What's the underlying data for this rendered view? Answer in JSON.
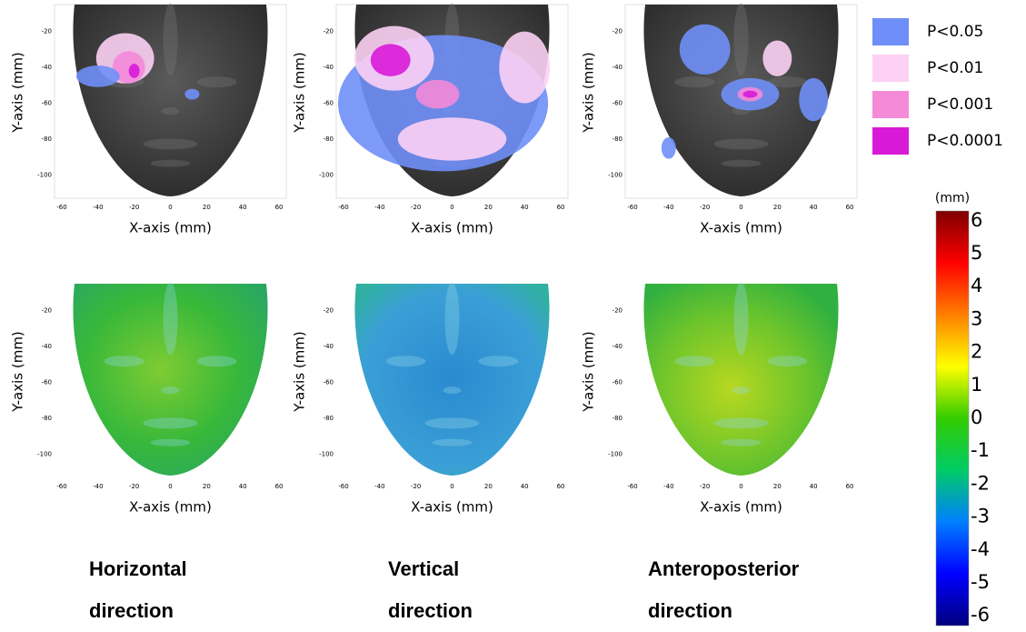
{
  "chart_data": [
    {
      "type": "heatmap",
      "xlabel": "X-axis (mm)",
      "ylabel": "Y-axis (mm)",
      "xlim": [
        -64,
        64
      ],
      "ylim": [
        -113,
        -5
      ],
      "xticks": [
        -60,
        -40,
        -20,
        0,
        20,
        40,
        60
      ],
      "yticks": [
        -20,
        -40,
        -60,
        -80,
        -100
      ]
    },
    {
      "type": "heatmap",
      "xlabel": "X-axis (mm)",
      "ylabel": "Y-axis (mm)",
      "xlim": [
        -64,
        64
      ],
      "ylim": [
        -113,
        -5
      ],
      "xticks": [
        -60,
        -40,
        -20,
        0,
        20,
        40,
        60
      ],
      "yticks": [
        -20,
        -40,
        -60,
        -80,
        -100
      ]
    },
    {
      "type": "heatmap",
      "xlabel": "X-axis (mm)",
      "ylabel": "Y-axis (mm)",
      "xlim": [
        -64,
        64
      ],
      "ylim": [
        -113,
        -5
      ],
      "xticks": [
        -60,
        -40,
        -20,
        0,
        20,
        40,
        60
      ],
      "yticks": [
        -20,
        -40,
        -60,
        -80,
        -100
      ]
    },
    {
      "type": "heatmap",
      "xlabel": "X-axis (mm)",
      "ylabel": "Y-axis (mm)",
      "xlim": [
        -64,
        64
      ],
      "ylim": [
        -113,
        -5
      ],
      "xticks": [
        -60,
        -40,
        -20,
        0,
        20,
        40,
        60
      ],
      "yticks": [
        -20,
        -40,
        -60,
        -80,
        -100
      ]
    },
    {
      "type": "heatmap",
      "xlabel": "X-axis (mm)",
      "ylabel": "Y-axis (mm)",
      "xlim": [
        -64,
        64
      ],
      "ylim": [
        -113,
        -5
      ],
      "xticks": [
        -60,
        -40,
        -20,
        0,
        20,
        40,
        60
      ],
      "yticks": [
        -20,
        -40,
        -60,
        -80,
        -100
      ]
    },
    {
      "type": "heatmap",
      "xlabel": "X-axis (mm)",
      "ylabel": "Y-axis (mm)",
      "xlim": [
        -64,
        64
      ],
      "ylim": [
        -113,
        -5
      ],
      "xticks": [
        -60,
        -40,
        -20,
        0,
        20,
        40,
        60
      ],
      "yticks": [
        -20,
        -40,
        -60,
        -80,
        -100
      ]
    },
    {
      "type": "colorbar",
      "title": "(mm)",
      "ylim": [
        -6.3,
        6.3
      ],
      "yticks": [
        6,
        5,
        4,
        3,
        2,
        1,
        0,
        -1,
        -2,
        -3,
        -4,
        -5,
        -6
      ],
      "colors": [
        "#00007f",
        "#0000ff",
        "#007fff",
        "#00cc66",
        "#33cc00",
        "#ffff00",
        "#ff7f00",
        "#ff0000",
        "#7f0000"
      ]
    }
  ],
  "legend": [
    {
      "label": "P<0.05",
      "color": "#6f8ff8"
    },
    {
      "label": "P<0.01",
      "color": "#fcd0f4"
    },
    {
      "label": "P<0.001",
      "color": "#f48ad8"
    },
    {
      "label": "P<0.0001",
      "color": "#d81ad8"
    }
  ],
  "column_labels": [
    "Horizontal direction",
    "Vertical direction",
    "Anteroposterior direction"
  ]
}
